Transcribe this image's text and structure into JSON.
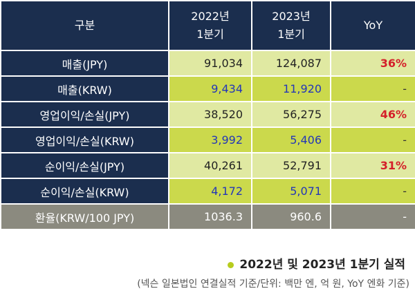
{
  "table": {
    "header": [
      "구분",
      [
        "2022년",
        "1분기"
      ],
      [
        "2023년",
        "1분기"
      ],
      "YoY"
    ],
    "rows": [
      {
        "kind": "jpy",
        "cells": [
          "매출(JPY)",
          "91,034",
          "124,087",
          "36%"
        ]
      },
      {
        "kind": "krw",
        "cells": [
          "매출(KRW)",
          "9,434",
          "11,920",
          "-"
        ]
      },
      {
        "kind": "jpy",
        "cells": [
          "영업이익/손실(JPY)",
          "38,520",
          "56,275",
          "46%"
        ]
      },
      {
        "kind": "krw",
        "cells": [
          "영업이익/손실(KRW)",
          "3,992",
          "5,406",
          "-"
        ]
      },
      {
        "kind": "jpy",
        "cells": [
          "순이익/손실(JPY)",
          "40,261",
          "52,791",
          "31%"
        ]
      },
      {
        "kind": "krw",
        "cells": [
          "순이익/손실(KRW)",
          "4,172",
          "5,071",
          "-"
        ]
      },
      {
        "kind": "rate",
        "cells": [
          "환율(KRW/100 JPY)",
          "1036.3",
          "960.6",
          "-"
        ]
      }
    ]
  },
  "caption": {
    "title": "2022년 및 2023년 1분기 실적",
    "note": "(넥슨 일본법인 연결실적 기준/단위: 백만 엔, 억 원, YoY 엔화 기준)"
  }
}
